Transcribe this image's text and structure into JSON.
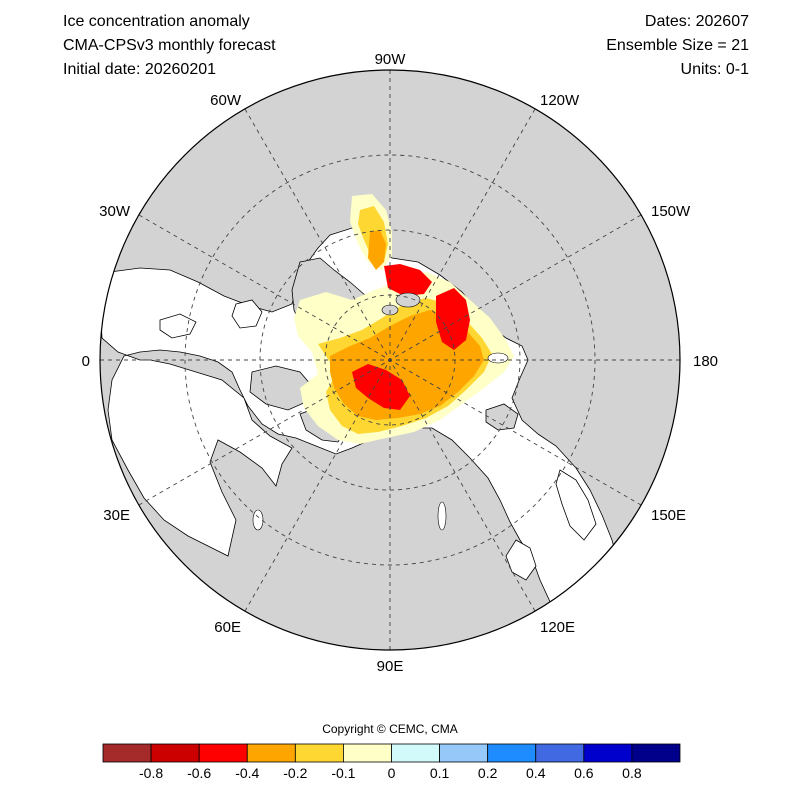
{
  "header": {
    "title": "Ice concentration anomaly",
    "model": "CMA-CPSv3 monthly forecast",
    "initial": "Initial date: 20260201",
    "dates": "Dates: 202607",
    "ensemble": "Ensemble Size = 21",
    "units": "Units: 0-1"
  },
  "map": {
    "projection": "north-polar-stereographic",
    "longitude_labels": {
      "top": "90W",
      "top_right": "120W",
      "right_upper": "150W",
      "right": "180",
      "right_lower": "150E",
      "bottom_right": "120E",
      "bottom": "90E",
      "bottom_left": "60E",
      "left_lower": "30E",
      "left": "0",
      "left_upper": "30W",
      "top_left": "60W"
    },
    "land_color": "#d3d3d3",
    "ocean_color": "#ffffff",
    "grid": "dashed"
  },
  "copyright": "Copyright © CEMC, CMA",
  "colorbar": {
    "colors": [
      "#a52a2a",
      "#cd0000",
      "#ff0000",
      "#ffa500",
      "#ffd732",
      "#ffffc8",
      "#d2fafa",
      "#96c8fa",
      "#1e8cff",
      "#4169e1",
      "#0000cd",
      "#00008b"
    ],
    "labels": [
      "-0.8",
      "-0.6",
      "-0.4",
      "-0.2",
      "-0.1",
      "0",
      "0.1",
      "0.2",
      "0.4",
      "0.6",
      "0.8"
    ]
  }
}
